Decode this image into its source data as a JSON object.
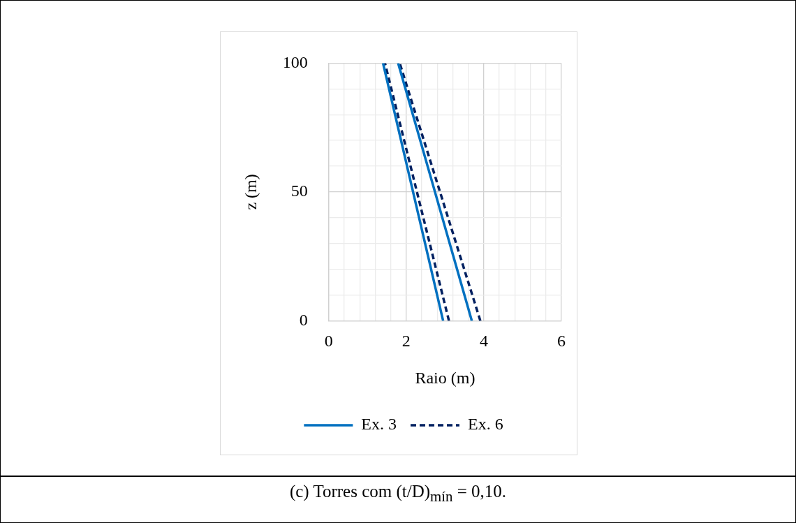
{
  "chart_data": {
    "type": "line",
    "xlabel": "Raio (m)",
    "ylabel": "z (m)",
    "annotations": [
      "(c) Torres com (t/D)$_{mín}$ = 0,10."
    ],
    "series": [
      {
        "name": "Ex. 3",
        "color": "#0070c0",
        "x": [
          2.95,
          1.4
        ],
        "values": [
          0,
          100
        ],
        "line_style": "solid"
      },
      {
        "color": "#0070c0",
        "x": [
          3.69,
          1.79
        ],
        "values": [
          0,
          100
        ],
        "line_style": "solid"
      },
      {
        "name": "Ex. 6",
        "color": "#002060",
        "x": [
          3.1,
          1.45
        ],
        "values": [
          0,
          100
        ],
        "line_style": "dashed"
      },
      {
        "color": "#002060",
        "x": [
          3.91,
          1.83
        ],
        "values": [
          0,
          100
        ],
        "line_style": "dashed"
      }
    ],
    "xlim": [
      0,
      6
    ],
    "xticks": [
      0,
      2,
      4,
      6
    ],
    "ylim": [
      0,
      100
    ],
    "yticks": [
      0,
      50,
      100
    ],
    "grid": true,
    "legend": "bottom",
    "marker": "none"
  }
}
